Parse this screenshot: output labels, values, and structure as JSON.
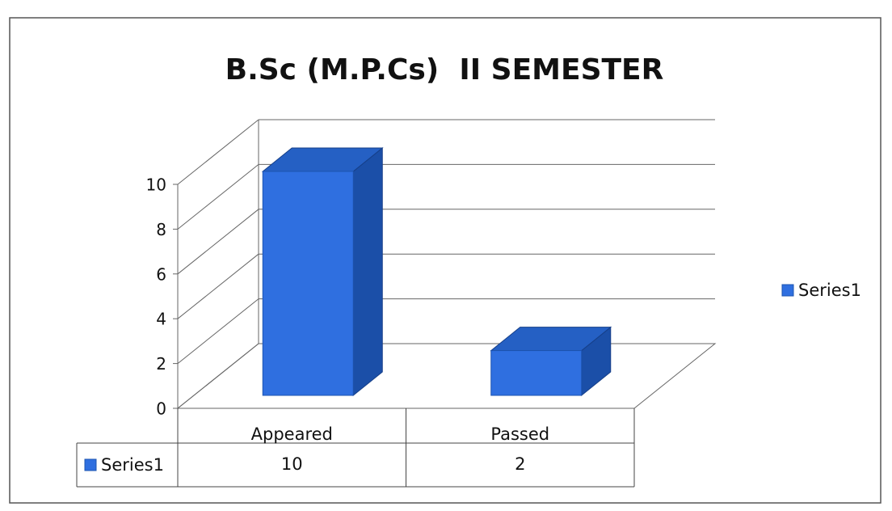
{
  "chart_data": {
    "type": "bar",
    "title": "B.Sc (M.P.Cs)  II SEMESTER",
    "categories": [
      "Appeared",
      "Passed"
    ],
    "series": [
      {
        "name": "Series1",
        "color": "#2f6fe0",
        "values": [
          10,
          2
        ]
      }
    ],
    "ylim": [
      0,
      10
    ],
    "yticks": [
      0,
      2,
      4,
      6,
      8,
      10
    ],
    "grid": true,
    "legend": "right",
    "data_table": true
  }
}
